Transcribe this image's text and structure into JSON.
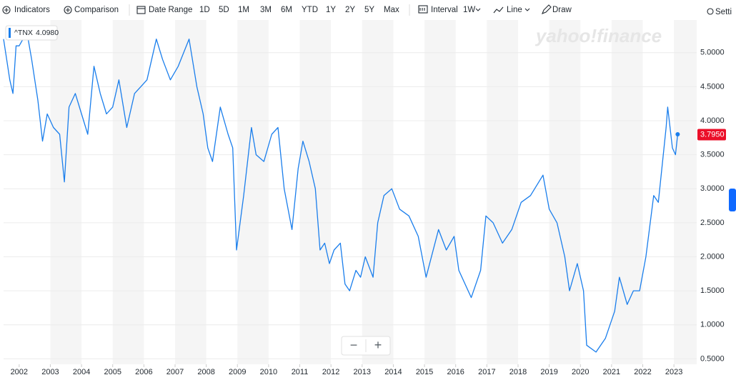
{
  "toolbar": {
    "indicators": "Indicators",
    "comparison": "Comparison",
    "date_range": "Date Range",
    "ranges": [
      "1D",
      "5D",
      "1M",
      "3M",
      "6M",
      "YTD",
      "1Y",
      "2Y",
      "5Y",
      "Max"
    ],
    "interval": "Interval",
    "interval_value": "1W",
    "line": "Line",
    "draw": "Draw",
    "settings": "Setti"
  },
  "watermark": "yahoo!finance",
  "zoom": {
    "out": "−",
    "in": "+"
  },
  "chart_data": {
    "type": "line",
    "x": [
      2001.5,
      2001.7,
      2001.8,
      2001.9,
      2002.0,
      2002.25,
      2002.4,
      2002.6,
      2002.75,
      2002.9,
      2003.1,
      2003.3,
      2003.45,
      2003.6,
      2003.8,
      2004.0,
      2004.2,
      2004.4,
      2004.6,
      2004.8,
      2005.0,
      2005.2,
      2005.45,
      2005.7,
      2005.9,
      2006.1,
      2006.4,
      2006.6,
      2006.85,
      2007.1,
      2007.45,
      2007.7,
      2007.9,
      2008.05,
      2008.2,
      2008.45,
      2008.7,
      2008.85,
      2008.97,
      2009.2,
      2009.45,
      2009.6,
      2009.85,
      2010.1,
      2010.3,
      2010.5,
      2010.75,
      2010.95,
      2011.1,
      2011.3,
      2011.5,
      2011.65,
      2011.8,
      2011.95,
      2012.1,
      2012.3,
      2012.45,
      2012.6,
      2012.8,
      2012.95,
      2013.1,
      2013.35,
      2013.5,
      2013.7,
      2013.95,
      2014.2,
      2014.5,
      2014.8,
      2015.05,
      2015.45,
      2015.7,
      2015.95,
      2016.1,
      2016.5,
      2016.8,
      2016.97,
      2017.2,
      2017.5,
      2017.8,
      2018.1,
      2018.4,
      2018.8,
      2019.0,
      2019.25,
      2019.5,
      2019.65,
      2019.9,
      2020.1,
      2020.2,
      2020.5,
      2020.8,
      2021.1,
      2021.25,
      2021.5,
      2021.7,
      2021.9,
      2022.1,
      2022.35,
      2022.5,
      2022.75,
      2022.8,
      2022.95,
      2023.05,
      2023.12
    ],
    "series": [
      {
        "name": "^TNX",
        "color": "#1a7eec",
        "values": [
          5.2,
          4.6,
          4.4,
          5.1,
          5.1,
          5.3,
          4.9,
          4.3,
          3.7,
          4.1,
          3.9,
          3.8,
          3.1,
          4.2,
          4.4,
          4.1,
          3.8,
          4.8,
          4.4,
          4.1,
          4.2,
          4.6,
          3.9,
          4.4,
          4.5,
          4.6,
          5.2,
          4.9,
          4.6,
          4.8,
          5.2,
          4.5,
          4.1,
          3.6,
          3.4,
          4.2,
          3.8,
          3.6,
          2.1,
          2.9,
          3.9,
          3.5,
          3.4,
          3.8,
          3.9,
          3.0,
          2.4,
          3.3,
          3.7,
          3.4,
          3.0,
          2.1,
          2.2,
          1.9,
          2.1,
          2.2,
          1.6,
          1.5,
          1.8,
          1.7,
          2.0,
          1.7,
          2.5,
          2.9,
          3.0,
          2.7,
          2.6,
          2.3,
          1.7,
          2.4,
          2.1,
          2.3,
          1.8,
          1.4,
          1.8,
          2.6,
          2.5,
          2.2,
          2.4,
          2.8,
          2.9,
          3.2,
          2.7,
          2.5,
          2.0,
          1.5,
          1.9,
          1.5,
          0.7,
          0.6,
          0.8,
          1.2,
          1.7,
          1.3,
          1.5,
          1.5,
          2.0,
          2.9,
          2.8,
          3.9,
          4.2,
          3.6,
          3.5,
          3.8
        ]
      }
    ],
    "legend_value": {
      "value": 4.098,
      "label": "4.0980"
    },
    "last_value": {
      "value": 3.795,
      "label": "3.7950"
    },
    "xlim": [
      2001.5,
      2023.73
    ],
    "xticks": [
      2002,
      2003,
      2004,
      2005,
      2006,
      2007,
      2008,
      2009,
      2010,
      2011,
      2012,
      2013,
      2014,
      2015,
      2016,
      2017,
      2018,
      2019,
      2020,
      2021,
      2022,
      2023
    ],
    "ylim": [
      0.42,
      5.48
    ],
    "yticks": [
      {
        "value": 0.5,
        "label": "0.5000"
      },
      {
        "value": 1,
        "label": "1.0000"
      },
      {
        "value": 1.5,
        "label": "1.5000"
      },
      {
        "value": 2,
        "label": "2.0000"
      },
      {
        "value": 2.5,
        "label": "2.5000"
      },
      {
        "value": 3,
        "label": "3.0000"
      },
      {
        "value": 3.5,
        "label": "3.5000"
      },
      {
        "value": 4,
        "label": "4.0000"
      },
      {
        "value": 4.5,
        "label": "4.5000"
      },
      {
        "value": 5,
        "label": "5.0000"
      }
    ],
    "grid": true
  }
}
